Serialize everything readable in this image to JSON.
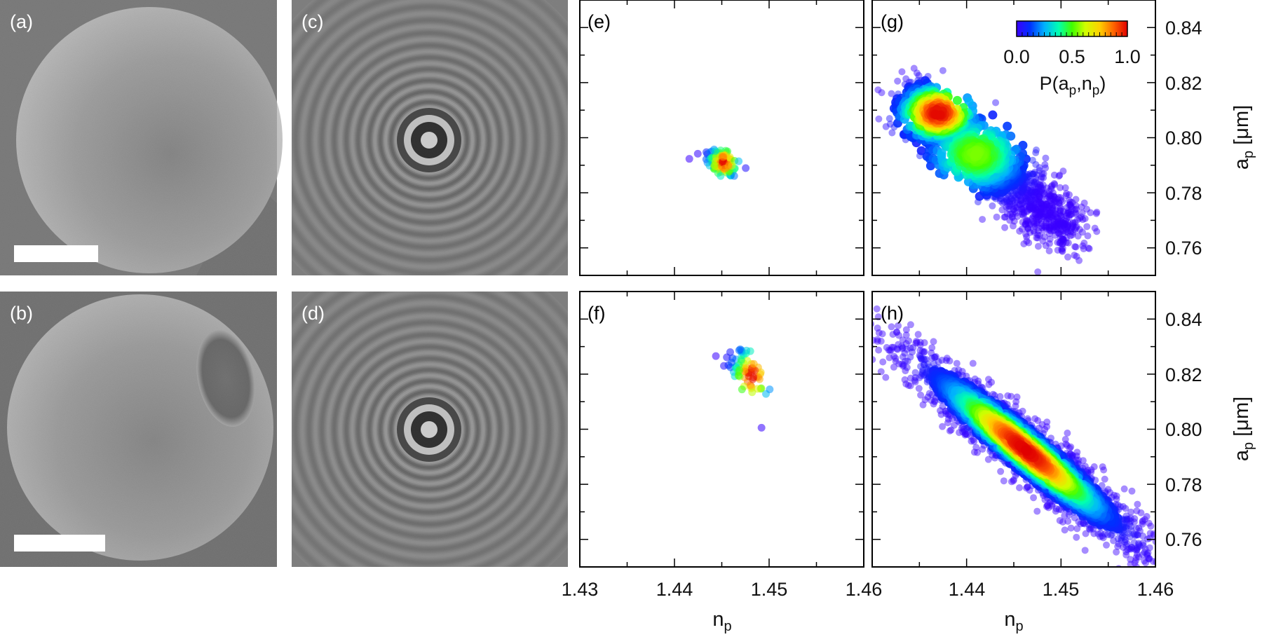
{
  "panels": {
    "a": "(a)",
    "b": "(b)",
    "c": "(c)",
    "d": "(d)",
    "e": "(e)",
    "f": "(f)",
    "g": "(g)",
    "h": "(h)"
  },
  "axes": {
    "x_base": "n",
    "x_sub": "p",
    "y_base": "a",
    "y_sub": "p",
    "y_unit": "[μm]",
    "x_ticks": [
      "1.43",
      "1.44",
      "1.45",
      "1.46"
    ],
    "y_ticks": [
      "0.76",
      "0.78",
      "0.80",
      "0.82",
      "0.84"
    ]
  },
  "colorbar": {
    "ticks": [
      "0.0",
      "0.5",
      "1.0"
    ],
    "label_base": "P(a",
    "label_sub1": "p",
    "label_mid": ",n",
    "label_sub2": "p",
    "label_end": ")",
    "colors": [
      "#3a00ff",
      "#0030ff",
      "#00b0ff",
      "#00ffb0",
      "#40ff00",
      "#d0ff00",
      "#ffd000",
      "#ff6000",
      "#e00000"
    ]
  },
  "chart_data": [
    {
      "type": "scatter",
      "panel": "(e)",
      "xlim": [
        1.43,
        1.46
      ],
      "ylim": [
        0.75,
        0.85
      ],
      "clusters": [
        {
          "center": [
            1.445,
            0.791
          ],
          "peak": [
            1.4452,
            0.791
          ],
          "spread_n": 0.0008,
          "spread_a": 0.0028
        }
      ]
    },
    {
      "type": "scatter",
      "panel": "(f)",
      "xlim": [
        1.43,
        1.46
      ],
      "ylim": [
        0.75,
        0.85
      ],
      "clusters": [
        {
          "center": [
            1.4476,
            0.8215
          ],
          "peak": [
            1.4482,
            0.8195
          ],
          "spread_n": 0.001,
          "spread_a": 0.005
        }
      ]
    },
    {
      "type": "heatmap",
      "panel": "(g)",
      "xlim": [
        1.43,
        1.46
      ],
      "ylim": [
        0.75,
        0.85
      ],
      "peak": [
        1.437,
        0.809
      ],
      "extent_n": [
        1.434,
        1.451
      ],
      "extent_a": [
        0.76,
        0.83
      ]
    },
    {
      "type": "heatmap",
      "panel": "(h)",
      "xlim": [
        1.43,
        1.46
      ],
      "ylim": [
        0.75,
        0.85
      ],
      "peak": [
        1.4462,
        0.7925
      ],
      "extent_n": [
        1.43,
        1.459
      ],
      "extent_a": [
        0.763,
        0.845
      ]
    }
  ]
}
